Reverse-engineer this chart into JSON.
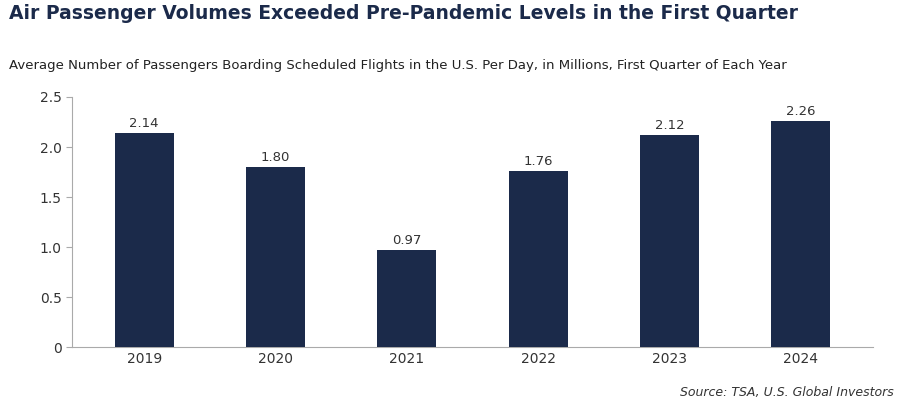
{
  "title": "Air Passenger Volumes Exceeded Pre-Pandemic Levels in the First Quarter",
  "subtitle": "Average Number of Passengers Boarding Scheduled Flights in the U.S. Per Day, in Millions, First Quarter of Each Year",
  "source_bold": "Source:",
  "source_rest": " TSA, U.S. Global Investors",
  "categories": [
    "2019",
    "2020",
    "2021",
    "2022",
    "2023",
    "2024"
  ],
  "values": [
    2.14,
    1.8,
    0.97,
    1.76,
    2.12,
    2.26
  ],
  "bar_color": "#1b2a4a",
  "ylim": [
    0,
    2.5
  ],
  "yticks": [
    0,
    0.5,
    1.0,
    1.5,
    2.0,
    2.5
  ],
  "title_color": "#1b2a4a",
  "subtitle_color": "#222222",
  "label_color": "#333333",
  "source_color": "#333333",
  "background_color": "#ffffff",
  "title_fontsize": 13.5,
  "subtitle_fontsize": 9.5,
  "source_fontsize": 9,
  "bar_label_fontsize": 9.5,
  "tick_fontsize": 10,
  "bar_width": 0.45
}
